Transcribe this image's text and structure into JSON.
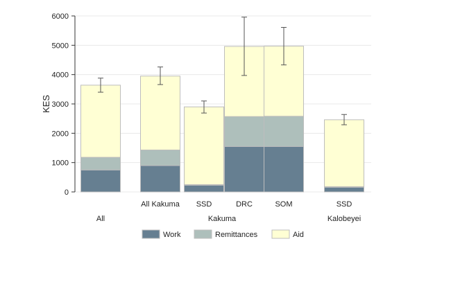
{
  "chart_data": {
    "type": "bar",
    "stacked": true,
    "title": "",
    "xlabel": "",
    "ylabel": "KES",
    "ylim": [
      0,
      6000
    ],
    "yticks": [
      0,
      1000,
      2000,
      3000,
      4000,
      5000,
      6000
    ],
    "ytick_labels": [
      "0",
      "1000",
      "2000",
      "3000",
      "4000",
      "5000",
      "6000"
    ],
    "grid": true,
    "legend_position": "bottom",
    "categories": [
      "",
      "All Kakuma",
      "SSD",
      "DRC",
      "SOM",
      "SSD"
    ],
    "groups": [
      {
        "label": "All",
        "categories": [
          0
        ]
      },
      {
        "label": "Kakuma",
        "categories": [
          1,
          2,
          3,
          4
        ]
      },
      {
        "label": "Kalobeyei",
        "categories": [
          5
        ]
      }
    ],
    "series": [
      {
        "name": "Work",
        "color": "#667f91",
        "values": [
          750,
          900,
          230,
          1550,
          1550,
          160
        ]
      },
      {
        "name": "Remittances",
        "color": "#aebfbb",
        "values": [
          430,
          530,
          20,
          1020,
          1030,
          20
        ]
      },
      {
        "name": "Aid",
        "color": "#ffffd4",
        "values": [
          2460,
          2520,
          2650,
          2390,
          2390,
          2280
        ]
      }
    ],
    "error_bars": [
      {
        "low": 3400,
        "high": 3880
      },
      {
        "low": 3660,
        "high": 4260
      },
      {
        "low": 2690,
        "high": 3100
      },
      {
        "low": 3970,
        "high": 5960
      },
      {
        "low": 4330,
        "high": 5610
      },
      {
        "low": 2290,
        "high": 2640
      }
    ]
  }
}
